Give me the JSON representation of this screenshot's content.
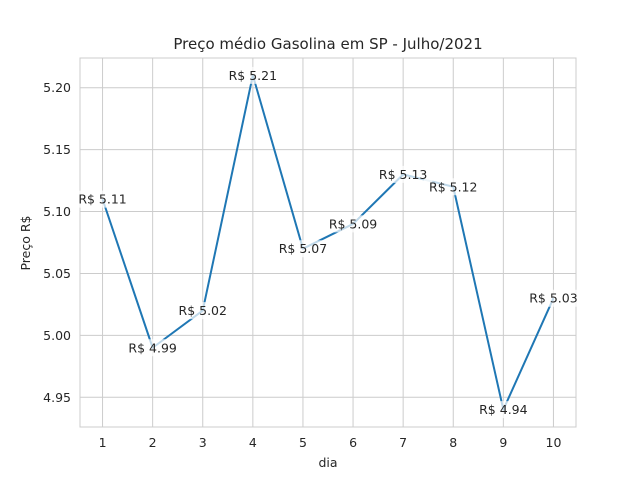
{
  "chart_data": {
    "type": "line",
    "title": "Preço médio Gasolina em SP - Julho/2021",
    "xlabel": "dia",
    "ylabel": "Preço R$",
    "x": [
      1,
      2,
      3,
      4,
      5,
      6,
      7,
      8,
      9,
      10
    ],
    "series": [
      {
        "values": [
          5.11,
          4.99,
          5.02,
          5.21,
          5.07,
          5.09,
          5.13,
          5.12,
          4.94,
          5.03
        ],
        "labels": [
          "R$ 5.11",
          "R$ 4.99",
          "R$ 5.02",
          "R$ 5.21",
          "R$ 5.07",
          "R$ 5.09",
          "R$ 5.13",
          "R$ 5.12",
          "R$ 4.94",
          "R$ 5.03"
        ],
        "color": "#1f77b4"
      }
    ],
    "xticks": [
      "1",
      "2",
      "3",
      "4",
      "5",
      "6",
      "7",
      "8",
      "9",
      "10"
    ],
    "yticks": [
      "4.95",
      "5.00",
      "5.05",
      "5.10",
      "5.15",
      "5.20"
    ],
    "xlim": [
      0.55,
      10.45
    ],
    "ylim": [
      4.926,
      5.224
    ],
    "grid": true
  }
}
